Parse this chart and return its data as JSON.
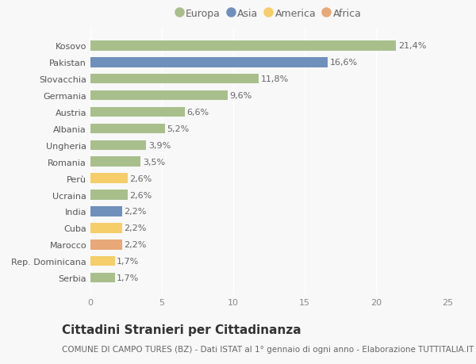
{
  "countries": [
    "Kosovo",
    "Pakistan",
    "Slovacchia",
    "Germania",
    "Austria",
    "Albania",
    "Ungheria",
    "Romania",
    "Perù",
    "Ucraina",
    "India",
    "Cuba",
    "Marocco",
    "Rep. Dominicana",
    "Serbia"
  ],
  "values": [
    21.4,
    16.6,
    11.8,
    9.6,
    6.6,
    5.2,
    3.9,
    3.5,
    2.6,
    2.6,
    2.2,
    2.2,
    2.2,
    1.7,
    1.7
  ],
  "labels": [
    "21,4%",
    "16,6%",
    "11,8%",
    "9,6%",
    "6,6%",
    "5,2%",
    "3,9%",
    "3,5%",
    "2,6%",
    "2,6%",
    "2,2%",
    "2,2%",
    "2,2%",
    "1,7%",
    "1,7%"
  ],
  "continents": [
    "Europa",
    "Asia",
    "Europa",
    "Europa",
    "Europa",
    "Europa",
    "Europa",
    "Europa",
    "America",
    "Europa",
    "Asia",
    "America",
    "Africa",
    "America",
    "Europa"
  ],
  "continent_colors": {
    "Europa": "#a8bf8c",
    "Asia": "#7090bc",
    "America": "#f5ce6a",
    "Africa": "#e8a878"
  },
  "legend_order": [
    "Europa",
    "Asia",
    "America",
    "Africa"
  ],
  "xlim": [
    0,
    25
  ],
  "xticks": [
    0,
    5,
    10,
    15,
    20,
    25
  ],
  "title": "Cittadini Stranieri per Cittadinanza",
  "subtitle": "COMUNE DI CAMPO TURES (BZ) - Dati ISTAT al 1° gennaio di ogni anno - Elaborazione TUTTITALIA.IT",
  "background_color": "#f8f8f8",
  "bar_height": 0.6,
  "title_fontsize": 11,
  "subtitle_fontsize": 7.5,
  "label_fontsize": 8,
  "ytick_fontsize": 8,
  "xtick_fontsize": 8,
  "legend_fontsize": 9
}
